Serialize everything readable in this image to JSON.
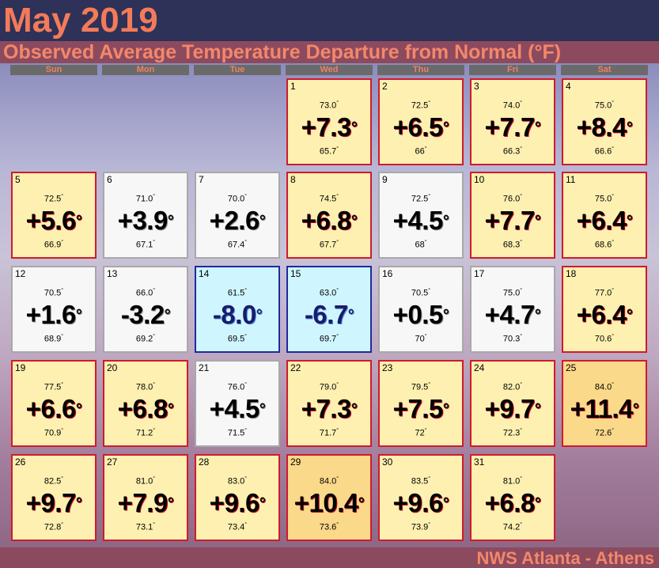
{
  "title": "May 2019",
  "subtitle": "Observed Average Temperature Departure from Normal (°F)",
  "weekdays": [
    "Sun",
    "Mon",
    "Tue",
    "Wed",
    "Thu",
    "Fri",
    "Sat"
  ],
  "degree_symbol": "°",
  "footer": "NWS Atlanta - Athens",
  "colors": {
    "above": "#fdf0b0",
    "much_above": "#fbd98a",
    "near": "#f7f7f7",
    "below": "#cff6ff",
    "border_warm": "#d01a2e",
    "border_cold": "#1e2aa0"
  },
  "days": [
    {
      "day": "1",
      "observed": "73.0",
      "departure": "+7.3",
      "normal": "65.7",
      "category": "above"
    },
    {
      "day": "2",
      "observed": "72.5",
      "departure": "+6.5",
      "normal": "66",
      "category": "above"
    },
    {
      "day": "3",
      "observed": "74.0",
      "departure": "+7.7",
      "normal": "66.3",
      "category": "above"
    },
    {
      "day": "4",
      "observed": "75.0",
      "departure": "+8.4",
      "normal": "66.6",
      "category": "above"
    },
    {
      "day": "5",
      "observed": "72.5",
      "departure": "+5.6",
      "normal": "66.9",
      "category": "above"
    },
    {
      "day": "6",
      "observed": "71.0",
      "departure": "+3.9",
      "normal": "67.1",
      "category": "near"
    },
    {
      "day": "7",
      "observed": "70.0",
      "departure": "+2.6",
      "normal": "67.4",
      "category": "near"
    },
    {
      "day": "8",
      "observed": "74.5",
      "departure": "+6.8",
      "normal": "67.7",
      "category": "above"
    },
    {
      "day": "9",
      "observed": "72.5",
      "departure": "+4.5",
      "normal": "68",
      "category": "near"
    },
    {
      "day": "10",
      "observed": "76.0",
      "departure": "+7.7",
      "normal": "68.3",
      "category": "above"
    },
    {
      "day": "11",
      "observed": "75.0",
      "departure": "+6.4",
      "normal": "68.6",
      "category": "above"
    },
    {
      "day": "12",
      "observed": "70.5",
      "departure": "+1.6",
      "normal": "68.9",
      "category": "near"
    },
    {
      "day": "13",
      "observed": "66.0",
      "departure": "-3.2",
      "normal": "69.2",
      "category": "near"
    },
    {
      "day": "14",
      "observed": "61.5",
      "departure": "-8.0",
      "normal": "69.5",
      "category": "below"
    },
    {
      "day": "15",
      "observed": "63.0",
      "departure": "-6.7",
      "normal": "69.7",
      "category": "below"
    },
    {
      "day": "16",
      "observed": "70.5",
      "departure": "+0.5",
      "normal": "70",
      "category": "near"
    },
    {
      "day": "17",
      "observed": "75.0",
      "departure": "+4.7",
      "normal": "70.3",
      "category": "near"
    },
    {
      "day": "18",
      "observed": "77.0",
      "departure": "+6.4",
      "normal": "70.6",
      "category": "above"
    },
    {
      "day": "19",
      "observed": "77.5",
      "departure": "+6.6",
      "normal": "70.9",
      "category": "above"
    },
    {
      "day": "20",
      "observed": "78.0",
      "departure": "+6.8",
      "normal": "71.2",
      "category": "above"
    },
    {
      "day": "21",
      "observed": "76.0",
      "departure": "+4.5",
      "normal": "71.5",
      "category": "near"
    },
    {
      "day": "22",
      "observed": "79.0",
      "departure": "+7.3",
      "normal": "71.7",
      "category": "above"
    },
    {
      "day": "23",
      "observed": "79.5",
      "departure": "+7.5",
      "normal": "72",
      "category": "above"
    },
    {
      "day": "24",
      "observed": "82.0",
      "departure": "+9.7",
      "normal": "72.3",
      "category": "above"
    },
    {
      "day": "25",
      "observed": "84.0",
      "departure": "+11.4",
      "normal": "72.6",
      "category": "much_above"
    },
    {
      "day": "26",
      "observed": "82.5",
      "departure": "+9.7",
      "normal": "72.8",
      "category": "above"
    },
    {
      "day": "27",
      "observed": "81.0",
      "departure": "+7.9",
      "normal": "73.1",
      "category": "above"
    },
    {
      "day": "28",
      "observed": "83.0",
      "departure": "+9.6",
      "normal": "73.4",
      "category": "above"
    },
    {
      "day": "29",
      "observed": "84.0",
      "departure": "+10.4",
      "normal": "73.6",
      "category": "much_above"
    },
    {
      "day": "30",
      "observed": "83.5",
      "departure": "+9.6",
      "normal": "73.9",
      "category": "above"
    },
    {
      "day": "31",
      "observed": "81.0",
      "departure": "+6.8",
      "normal": "74.2",
      "category": "above"
    }
  ]
}
